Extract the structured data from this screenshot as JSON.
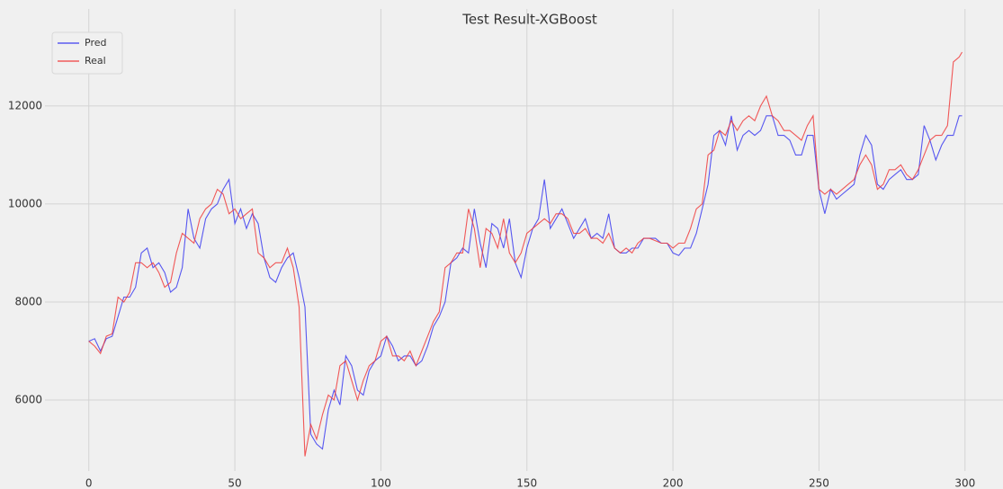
{
  "chart_data": {
    "type": "line",
    "title": "Test Result-XGBoost",
    "x": [
      0,
      2,
      4,
      6,
      8,
      10,
      12,
      14,
      16,
      18,
      20,
      22,
      24,
      26,
      28,
      30,
      32,
      34,
      36,
      38,
      40,
      42,
      44,
      46,
      48,
      50,
      52,
      54,
      56,
      58,
      60,
      62,
      64,
      66,
      68,
      70,
      72,
      74,
      76,
      78,
      80,
      82,
      84,
      86,
      88,
      90,
      92,
      94,
      96,
      98,
      100,
      102,
      104,
      106,
      108,
      110,
      112,
      114,
      116,
      118,
      120,
      122,
      124,
      126,
      128,
      130,
      132,
      134,
      136,
      138,
      140,
      142,
      144,
      146,
      148,
      150,
      152,
      154,
      156,
      158,
      160,
      162,
      164,
      166,
      168,
      170,
      172,
      174,
      176,
      178,
      180,
      182,
      184,
      186,
      188,
      190,
      192,
      194,
      196,
      198,
      200,
      202,
      204,
      206,
      208,
      210,
      212,
      214,
      216,
      218,
      220,
      222,
      224,
      226,
      228,
      230,
      232,
      234,
      236,
      238,
      240,
      242,
      244,
      246,
      248,
      250,
      252,
      254,
      256,
      258,
      260,
      262,
      264,
      266,
      268,
      270,
      272,
      274,
      276,
      278,
      280,
      282,
      284,
      286,
      288,
      290,
      292,
      294,
      296,
      298,
      299
    ],
    "series": [
      {
        "name": "Pred",
        "color": "#3c3cf0",
        "values": [
          7200,
          7250,
          7000,
          7250,
          7300,
          7700,
          8100,
          8100,
          8300,
          9000,
          9100,
          8700,
          8800,
          8600,
          8200,
          8300,
          8700,
          9900,
          9300,
          9100,
          9700,
          9900,
          10000,
          10300,
          10500,
          9600,
          9900,
          9500,
          9800,
          9600,
          8900,
          8500,
          8400,
          8700,
          8900,
          9000,
          8500,
          7900,
          5300,
          5100,
          5000,
          5800,
          6200,
          5900,
          6900,
          6700,
          6200,
          6100,
          6600,
          6800,
          6900,
          7300,
          7100,
          6800,
          6900,
          6900,
          6700,
          6800,
          7100,
          7500,
          7700,
          8000,
          8800,
          8900,
          9100,
          9000,
          9900,
          9200,
          8700,
          9600,
          9500,
          9100,
          9700,
          8800,
          8500,
          9100,
          9500,
          9700,
          10500,
          9500,
          9700,
          9900,
          9600,
          9300,
          9500,
          9700,
          9300,
          9400,
          9300,
          9800,
          9100,
          9000,
          9000,
          9100,
          9100,
          9300,
          9300,
          9300,
          9200,
          9200,
          9000,
          8950,
          9100,
          9100,
          9400,
          9900,
          10400,
          11400,
          11500,
          11200,
          11800,
          11100,
          11400,
          11500,
          11400,
          11500,
          11800,
          11800,
          11400,
          11400,
          11300,
          11000,
          11000,
          11400,
          11400,
          10300,
          9800,
          10300,
          10100,
          10200,
          10300,
          10400,
          11000,
          11400,
          11200,
          10400,
          10300,
          10500,
          10600,
          10700,
          10500,
          10500,
          10600,
          11600,
          11300,
          10900,
          11200,
          11400,
          11400,
          11800,
          11800
        ]
      },
      {
        "name": "Real",
        "color": "#f03c3c",
        "values": [
          7200,
          7100,
          6950,
          7300,
          7350,
          8100,
          8000,
          8200,
          8800,
          8800,
          8700,
          8800,
          8600,
          8300,
          8400,
          9000,
          9400,
          9300,
          9200,
          9700,
          9900,
          10000,
          10300,
          10200,
          9800,
          9900,
          9700,
          9800,
          9900,
          9000,
          8900,
          8700,
          8800,
          8800,
          9100,
          8700,
          7900,
          4850,
          5500,
          5200,
          5700,
          6100,
          6000,
          6700,
          6800,
          6400,
          6000,
          6400,
          6700,
          6800,
          7200,
          7300,
          6900,
          6900,
          6800,
          7000,
          6700,
          7000,
          7300,
          7600,
          7800,
          8700,
          8800,
          9000,
          9000,
          9900,
          9500,
          8700,
          9500,
          9400,
          9100,
          9700,
          9000,
          8800,
          9000,
          9400,
          9500,
          9600,
          9700,
          9600,
          9800,
          9800,
          9700,
          9400,
          9400,
          9500,
          9300,
          9300,
          9200,
          9400,
          9100,
          9000,
          9100,
          9000,
          9200,
          9300,
          9300,
          9250,
          9200,
          9200,
          9100,
          9200,
          9200,
          9500,
          9900,
          10000,
          11000,
          11100,
          11500,
          11400,
          11700,
          11500,
          11700,
          11800,
          11700,
          12000,
          12200,
          11800,
          11700,
          11500,
          11500,
          11400,
          11300,
          11600,
          11800,
          10300,
          10200,
          10300,
          10200,
          10300,
          10400,
          10500,
          10800,
          11000,
          10800,
          10300,
          10400,
          10700,
          10700,
          10800,
          10600,
          10500,
          10700,
          11000,
          11300,
          11400,
          11400,
          11600,
          12900,
          13000,
          13100
        ]
      }
    ],
    "xlim": [
      -15,
      313
    ],
    "xticks": [
      0,
      50,
      100,
      150,
      200,
      250,
      300
    ],
    "ylim": [
      4550,
      13980
    ],
    "yticks": [
      6000,
      8000,
      10000,
      12000
    ],
    "grid": true,
    "legend": "upper left"
  }
}
